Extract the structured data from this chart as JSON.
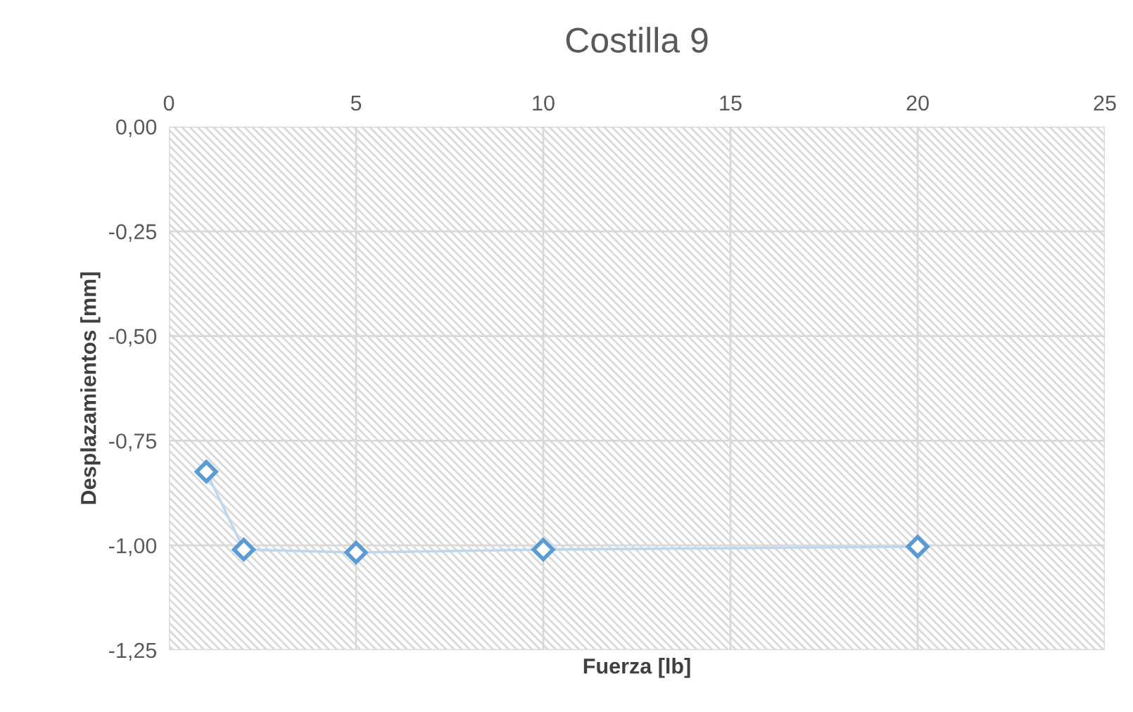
{
  "chart_data": {
    "type": "line",
    "title": "Costilla 9",
    "xlabel": "Fuerza [lb]",
    "ylabel": "Desplazamientos [mm]",
    "x": [
      1,
      2,
      5,
      10,
      20
    ],
    "series": [
      {
        "color": "#5b9bd5",
        "values": [
          -0.824,
          -1.01,
          -1.017,
          -1.01,
          -1.003
        ]
      }
    ],
    "marker": "diamond",
    "line_style": "solid",
    "grid": true,
    "xlim": [
      0,
      25
    ],
    "xticks": [
      0,
      5,
      10,
      15,
      20,
      25
    ],
    "ylim": [
      -1.25,
      0
    ],
    "yticks": [
      {
        "value": 0,
        "label": "0,00"
      },
      {
        "value": -0.25,
        "label": "-0,25"
      },
      {
        "value": -0.5,
        "label": "-0,50"
      },
      {
        "value": -0.75,
        "label": "-0,75"
      },
      {
        "value": -1,
        "label": "-1,00"
      },
      {
        "value": -1.25,
        "label": "-1,25"
      }
    ]
  }
}
